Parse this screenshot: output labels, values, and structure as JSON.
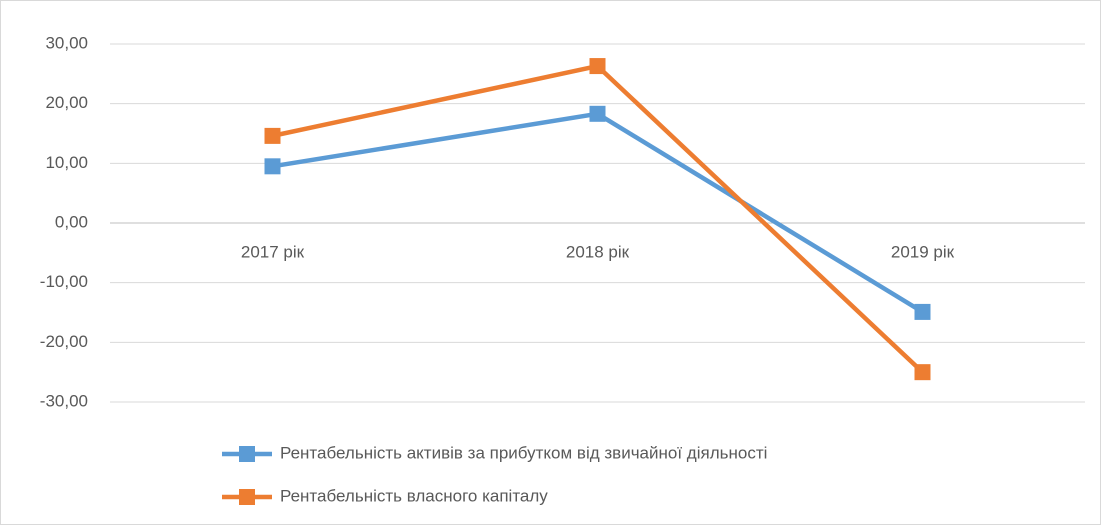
{
  "chart_data": {
    "type": "line",
    "categories": [
      "2017 рік",
      "2018 рік",
      "2019 рік"
    ],
    "series": [
      {
        "name": "Рентабельність активів за прибутком від звичайної діяльності",
        "color": "#5b9bd5",
        "values": [
          9.5,
          18.3,
          -14.9
        ]
      },
      {
        "name": "Рентабельність власного капіталу",
        "color": "#ed7d31",
        "values": [
          14.6,
          26.3,
          -25.0
        ]
      }
    ],
    "ylim": [
      -30,
      30
    ],
    "yticks": [
      {
        "value": -30,
        "label": "-30,00"
      },
      {
        "value": -20,
        "label": "-20,00"
      },
      {
        "value": -10,
        "label": "-10,00"
      },
      {
        "value": 0,
        "label": "0,00"
      },
      {
        "value": 10,
        "label": "10,00"
      },
      {
        "value": 20,
        "label": "20,00"
      },
      {
        "value": 30,
        "label": "30,00"
      }
    ],
    "grid": true,
    "legend": "bottom"
  }
}
